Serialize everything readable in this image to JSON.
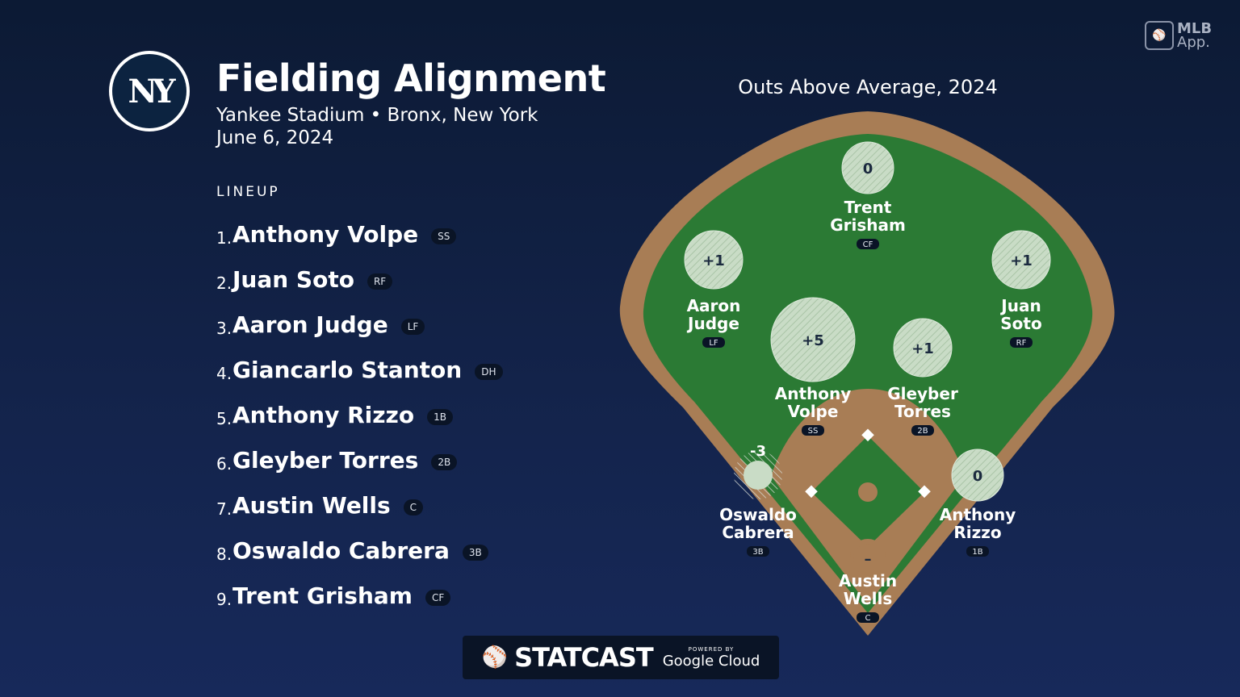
{
  "header": {
    "logo_text": "NY",
    "title": "Fielding Alignment",
    "subtitle": "Yankee Stadium • Bronx, New York",
    "date": "June 6, 2024"
  },
  "lineup": {
    "heading": "LINEUP",
    "players": [
      {
        "num": "1.",
        "name": "Anthony Volpe",
        "pos": "SS"
      },
      {
        "num": "2.",
        "name": "Juan Soto",
        "pos": "RF"
      },
      {
        "num": "3.",
        "name": "Aaron Judge",
        "pos": "LF"
      },
      {
        "num": "4.",
        "name": "Giancarlo Stanton",
        "pos": "DH"
      },
      {
        "num": "5.",
        "name": "Anthony Rizzo",
        "pos": "1B"
      },
      {
        "num": "6.",
        "name": "Gleyber Torres",
        "pos": "2B"
      },
      {
        "num": "7.",
        "name": "Austin Wells",
        "pos": "C"
      },
      {
        "num": "8.",
        "name": "Oswaldo Cabrera",
        "pos": "3B"
      },
      {
        "num": "9.",
        "name": "Trent Grisham",
        "pos": "CF"
      }
    ]
  },
  "chart": {
    "title": "Outs Above Average, 2024",
    "fielders": [
      {
        "first": "Trent",
        "last": "Grisham",
        "pos": "CF",
        "oaa": "0"
      },
      {
        "first": "Aaron",
        "last": "Judge",
        "pos": "LF",
        "oaa": "+1"
      },
      {
        "first": "Juan",
        "last": "Soto",
        "pos": "RF",
        "oaa": "+1"
      },
      {
        "first": "Anthony",
        "last": "Volpe",
        "pos": "SS",
        "oaa": "+5"
      },
      {
        "first": "Gleyber",
        "last": "Torres",
        "pos": "2B",
        "oaa": "+1"
      },
      {
        "first": "Oswaldo",
        "last": "Cabrera",
        "pos": "3B",
        "oaa": "-3"
      },
      {
        "first": "Anthony",
        "last": "Rizzo",
        "pos": "1B",
        "oaa": "0"
      },
      {
        "first": "Austin",
        "last": "Wells",
        "pos": "C",
        "oaa": "–"
      }
    ]
  },
  "branding": {
    "mlb_app_line1": "MLB",
    "mlb_app_line2": "App.",
    "statcast": "STATCAST",
    "powered_by": "POWERED BY",
    "google_cloud": "Google Cloud"
  },
  "colors": {
    "background": "#0c1a34",
    "grass": "#2b7a34",
    "dirt": "#a87d55",
    "badge": "#0a1426"
  }
}
